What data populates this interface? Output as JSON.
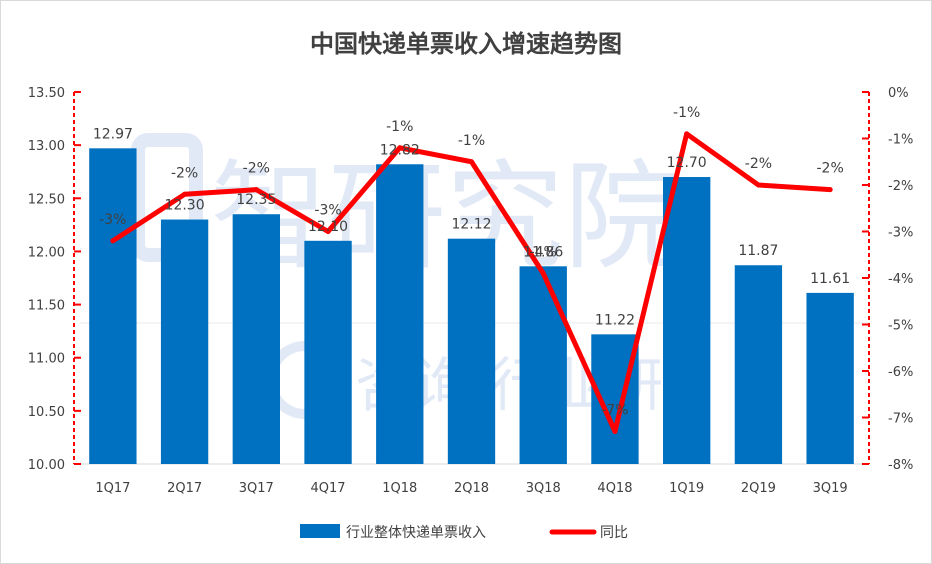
{
  "chart_data": {
    "type": "bar",
    "title": "中国快递单票收入增速趋势图",
    "categories": [
      "1Q17",
      "2Q17",
      "3Q17",
      "4Q17",
      "1Q18",
      "2Q18",
      "3Q18",
      "4Q18",
      "1Q19",
      "2Q19",
      "3Q19"
    ],
    "series": [
      {
        "name": "行业整体快递单票收入",
        "type": "bar",
        "axis": "left",
        "color": "#0070C0",
        "values": [
          12.97,
          12.3,
          12.35,
          12.1,
          12.82,
          12.12,
          11.86,
          11.22,
          12.7,
          11.87,
          11.61
        ],
        "labels": [
          "12.97",
          "12.30",
          "12.35",
          "12.10",
          "12.82",
          "12.12",
          "11.86",
          "11.22",
          "12.70",
          "11.87",
          "11.61"
        ]
      },
      {
        "name": "同比",
        "type": "line",
        "axis": "right",
        "color": "#FF0000",
        "values": [
          -3.2,
          -2.2,
          -2.1,
          -3.0,
          -1.2,
          -1.5,
          -3.9,
          -7.3,
          -0.9,
          -2.0,
          -2.1
        ],
        "labels": [
          "-3%",
          "-2%",
          "-2%",
          "-3%",
          "-1%",
          "-1%",
          "-4%",
          "-7%",
          "-1%",
          "-2%",
          "-2%"
        ]
      }
    ],
    "y_left": {
      "min": 10.0,
      "max": 13.5,
      "step": 0.5,
      "tick_labels": [
        "10.00",
        "10.50",
        "11.00",
        "11.50",
        "12.00",
        "12.50",
        "13.00",
        "13.50"
      ]
    },
    "y_right": {
      "min": -8,
      "max": 0,
      "step": 1,
      "tick_labels": [
        "-8%",
        "-7%",
        "-6%",
        "-5%",
        "-4%",
        "-3%",
        "-2%",
        "-1%",
        "0%"
      ]
    },
    "grid": false,
    "legend_position": "bottom",
    "right_axis_color": "#FF0000"
  }
}
